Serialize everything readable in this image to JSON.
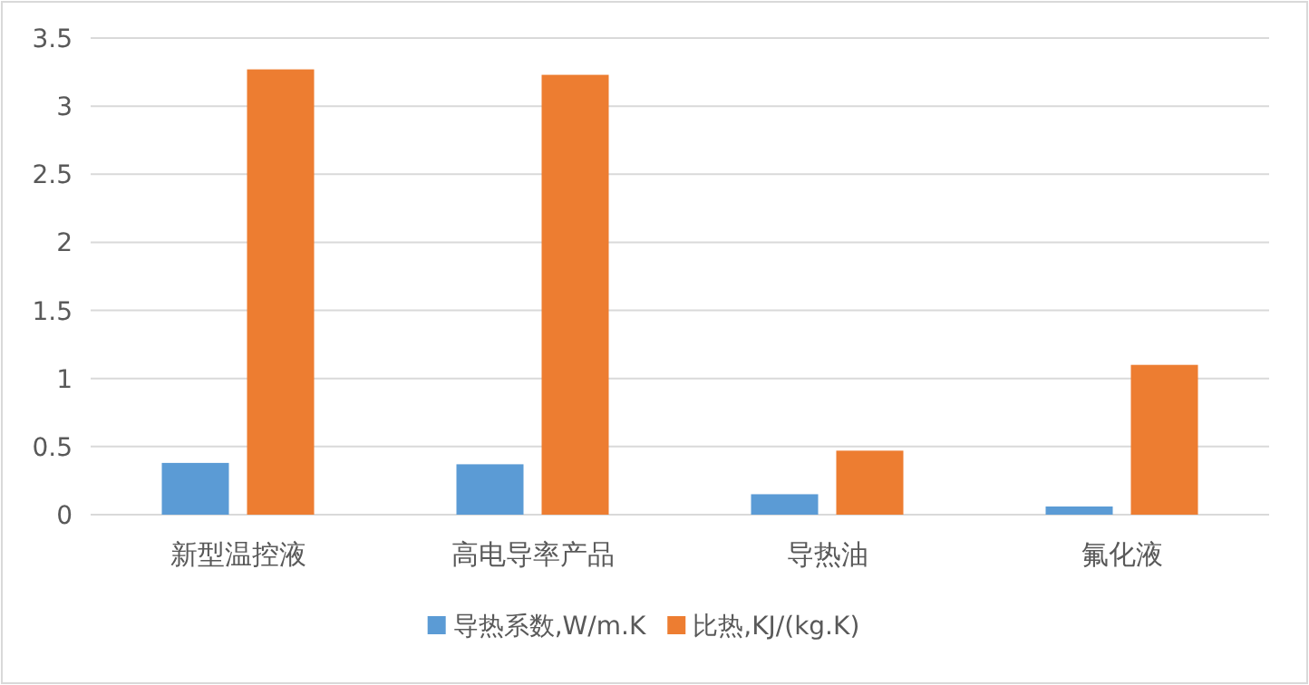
{
  "chart_data": {
    "type": "bar",
    "categories": [
      "新型温控液",
      "高电导率产品",
      "导热油",
      "氟化液"
    ],
    "series": [
      {
        "name": "导热系数,W/m.K",
        "color": "#5b9bd5",
        "values": [
          0.38,
          0.37,
          0.15,
          0.06
        ]
      },
      {
        "name": "比热,KJ/(kg.K)",
        "color": "#ed7d31",
        "values": [
          3.27,
          3.23,
          0.47,
          1.1
        ]
      }
    ],
    "ylim": [
      0,
      3.5
    ],
    "yticks": [
      0,
      0.5,
      1,
      1.5,
      2,
      2.5,
      3,
      3.5
    ],
    "grid": "y",
    "legend": "bottom"
  }
}
